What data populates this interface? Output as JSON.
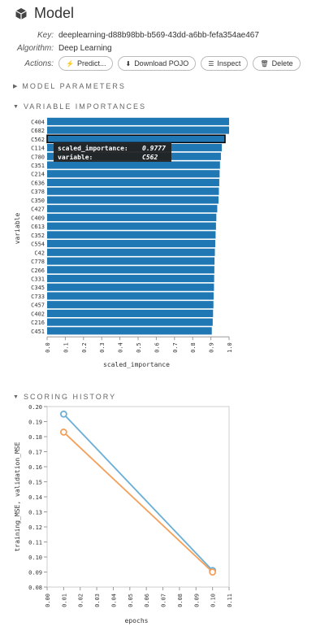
{
  "model": {
    "title": "Model",
    "key_label": "Key:",
    "key": "deeplearning-d88b98bb-b569-43dd-a6bb-fefa354ae467",
    "algorithm_label": "Algorithm:",
    "algorithm": "Deep Learning",
    "actions_label": "Actions:",
    "buttons": {
      "predict": "Predict...",
      "download": "Download POJO",
      "inspect": "Inspect",
      "delete": "Delete"
    }
  },
  "sections": {
    "params": "MODEL PARAMETERS",
    "varimp": "VARIABLE IMPORTANCES",
    "scoring": "SCORING HISTORY"
  },
  "icons": {
    "model": "cube-icon",
    "predict": "bolt-icon",
    "download": "download-icon",
    "inspect": "list-icon",
    "delete": "trash-icon"
  },
  "colors": {
    "bar": "#1f77b4",
    "training": "#6aaed6",
    "validation": "#f5a05a"
  },
  "tooltip": {
    "row1_label": "scaled_importance:",
    "row1_value": "0.9777",
    "row2_label": "variable:",
    "row2_value": "C562"
  },
  "chart_data": [
    {
      "type": "bar",
      "orientation": "horizontal",
      "categories": [
        "C404",
        "C682",
        "C562",
        "C114",
        "C780",
        "C351",
        "C214",
        "C636",
        "C378",
        "C350",
        "C427",
        "C409",
        "C613",
        "C352",
        "C554",
        "C42",
        "C778",
        "C266",
        "C331",
        "C345",
        "C733",
        "C457",
        "C402",
        "C216",
        "C451"
      ],
      "values": [
        1.0,
        1.0,
        0.9777,
        0.96,
        0.955,
        0.95,
        0.948,
        0.946,
        0.944,
        0.942,
        0.935,
        0.93,
        0.928,
        0.926,
        0.924,
        0.922,
        0.92,
        0.919,
        0.918,
        0.917,
        0.915,
        0.914,
        0.912,
        0.91,
        0.905
      ],
      "xlabel": "scaled_importance",
      "ylabel": "variable",
      "xlim": [
        0,
        1.0
      ],
      "xticks": [
        "0.0",
        "0.1",
        "0.2",
        "0.3",
        "0.4",
        "0.5",
        "0.6",
        "0.7",
        "0.8",
        "0.9",
        "1.0"
      ],
      "highlighted": "C562"
    },
    {
      "type": "line",
      "xlabel": "epochs",
      "ylabel": "training_MSE, validation_MSE",
      "xlim": [
        0,
        0.11
      ],
      "ylim": [
        0.08,
        0.2
      ],
      "xticks": [
        "0.00",
        "0.01",
        "0.02",
        "0.03",
        "0.04",
        "0.05",
        "0.06",
        "0.07",
        "0.08",
        "0.09",
        "0.10",
        "0.11"
      ],
      "yticks": [
        "0.08",
        "0.09",
        "0.10",
        "0.11",
        "0.12",
        "0.13",
        "0.14",
        "0.15",
        "0.16",
        "0.17",
        "0.18",
        "0.19",
        "0.20"
      ],
      "series": [
        {
          "key": "training",
          "x": [
            0.01,
            0.1
          ],
          "y": [
            0.195,
            0.091
          ]
        },
        {
          "key": "validation",
          "x": [
            0.01,
            0.1
          ],
          "y": [
            0.183,
            0.09
          ]
        }
      ]
    }
  ]
}
